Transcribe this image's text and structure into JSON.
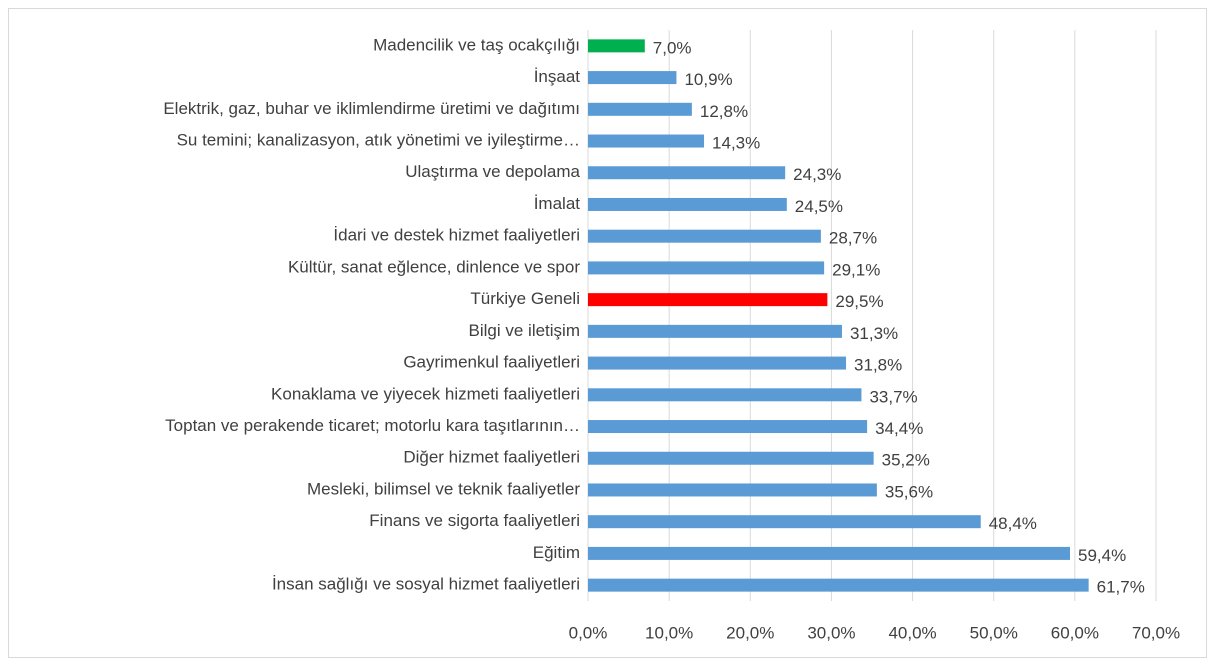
{
  "chart_data": {
    "type": "bar",
    "orientation": "horizontal",
    "categories": [
      "Madencilik ve taş ocakçılığı",
      "İnşaat",
      "Elektrik, gaz, buhar ve iklimlendirme üretimi ve dağıtımı",
      "Su temini; kanalizasyon, atık yönetimi ve iyileştirme…",
      "Ulaştırma ve depolama",
      "İmalat",
      "İdari ve destek hizmet faaliyetleri",
      "Kültür, sanat eğlence, dinlence ve spor",
      "Türkiye Geneli",
      "Bilgi ve iletişim",
      "Gayrimenkul faaliyetleri",
      "Konaklama ve yiyecek hizmeti faaliyetleri",
      "Toptan ve perakende ticaret; motorlu kara taşıtlarının…",
      "Diğer hizmet faaliyetleri",
      "Mesleki, bilimsel ve teknik faaliyetler",
      "Finans ve sigorta faaliyetleri",
      "Eğitim",
      "İnsan sağlığı ve sosyal hizmet faaliyetleri"
    ],
    "values": [
      7.0,
      10.9,
      12.8,
      14.3,
      24.3,
      24.5,
      28.7,
      29.1,
      29.5,
      31.3,
      31.8,
      33.7,
      34.4,
      35.2,
      35.6,
      48.4,
      59.4,
      61.7
    ],
    "value_labels": [
      "7,0%",
      "10,9%",
      "12,8%",
      "14,3%",
      "24,3%",
      "24,5%",
      "28,7%",
      "29,1%",
      "29,5%",
      "31,3%",
      "31,8%",
      "33,7%",
      "34,4%",
      "35,2%",
      "35,6%",
      "48,4%",
      "59,4%",
      "61,7%"
    ],
    "colors": [
      "#00b050",
      "#5b9bd5",
      "#5b9bd5",
      "#5b9bd5",
      "#5b9bd5",
      "#5b9bd5",
      "#5b9bd5",
      "#5b9bd5",
      "#ff0000",
      "#5b9bd5",
      "#5b9bd5",
      "#5b9bd5",
      "#5b9bd5",
      "#5b9bd5",
      "#5b9bd5",
      "#5b9bd5",
      "#5b9bd5",
      "#5b9bd5"
    ],
    "xlim": [
      0,
      70
    ],
    "xticks": [
      {
        "value": 0,
        "label": "0,0%"
      },
      {
        "value": 10,
        "label": "10,0%"
      },
      {
        "value": 20,
        "label": "20,0%"
      },
      {
        "value": 30,
        "label": "30,0%"
      },
      {
        "value": 40,
        "label": "40,0%"
      },
      {
        "value": 50,
        "label": "50,0%"
      },
      {
        "value": 60,
        "label": "60,0%"
      },
      {
        "value": 70,
        "label": "70,0%"
      }
    ],
    "grid": true
  }
}
